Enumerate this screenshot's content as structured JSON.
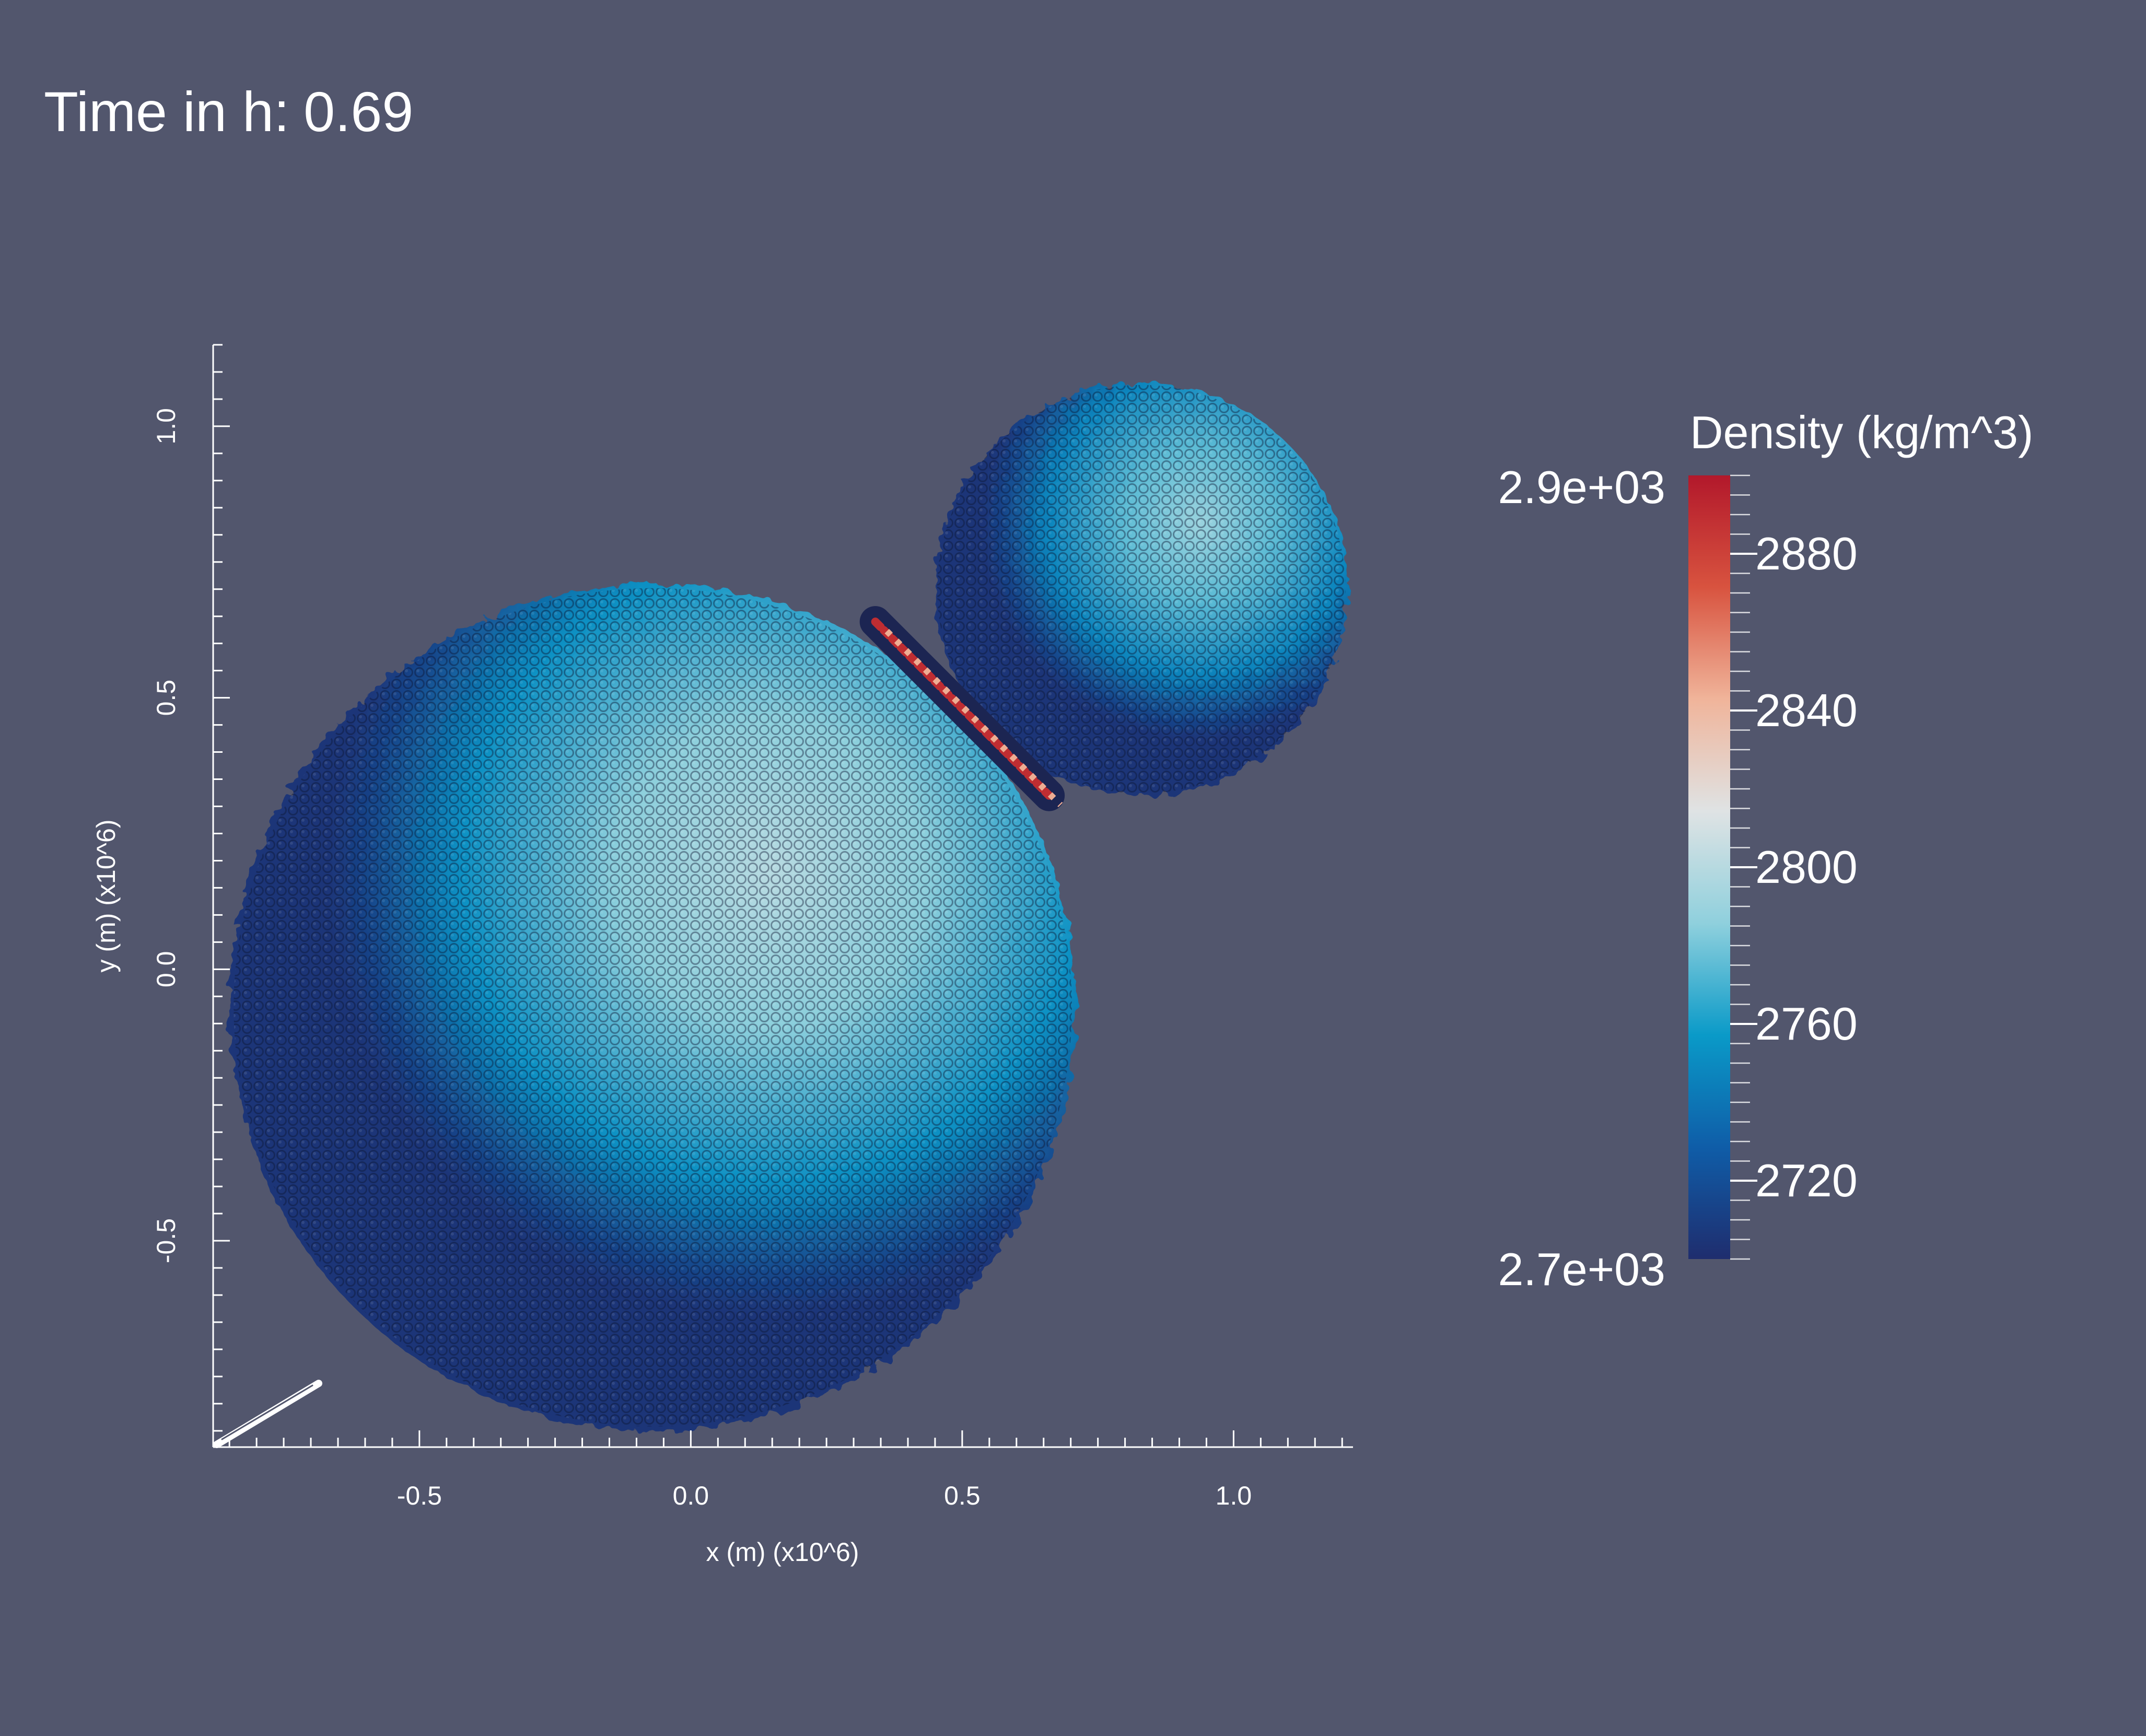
{
  "header": {
    "time_label": "Time in h:",
    "time_value": "0.69"
  },
  "colorbar": {
    "title": "Density (kg/m^3)",
    "range_max_label": "2.9e+03",
    "range_min_label": "2.7e+03",
    "min": 2700,
    "max": 2900,
    "ticks": [
      "2720",
      "2760",
      "2800",
      "2840",
      "2880"
    ],
    "colormap": [
      "#1f2d6e",
      "#0f5da8",
      "#0a9ac8",
      "#8fd0dd",
      "#dfe3e4",
      "#f0b49a",
      "#d8533f",
      "#b2182b"
    ]
  },
  "axes": {
    "x_title": "x (m) (x10^6)",
    "y_title": "y (m) (x10^6)",
    "x_tick_labels": [
      "-0.5",
      "0.0",
      "0.5",
      "1.0"
    ],
    "y_tick_labels": [
      "-0.5",
      "0.0",
      "0.5",
      "1.0"
    ]
  },
  "chart_data": {
    "type": "scatter",
    "title": "Time in h: 0.69",
    "xlabel": "x (m) (x10^6)",
    "ylabel": "y (m) (x10^6)",
    "xlim": [
      -0.88,
      1.22
    ],
    "ylim": [
      -0.88,
      1.15
    ],
    "x_ticks": [
      -0.5,
      0.0,
      0.5,
      1.0
    ],
    "y_ticks": [
      -0.5,
      0.0,
      0.5,
      1.0
    ],
    "color_variable": "Density (kg/m^3)",
    "color_range": [
      2700,
      2900
    ],
    "bodies": [
      {
        "name": "",
        "center": [
          -0.07,
          -0.07
        ],
        "radius": 0.78,
        "core_density": 2800,
        "edge_density": 2705
      },
      {
        "name": "",
        "center": [
          0.83,
          0.7
        ],
        "radius": 0.38,
        "core_density": 2790,
        "edge_density": 2705
      }
    ],
    "contact_zone": {
      "from": [
        0.34,
        0.64
      ],
      "to": [
        0.66,
        0.32
      ],
      "density": 2890
    },
    "grid": false,
    "legend": "right"
  },
  "colors": {
    "background": "#52566d",
    "foreground": "#ffffff"
  }
}
